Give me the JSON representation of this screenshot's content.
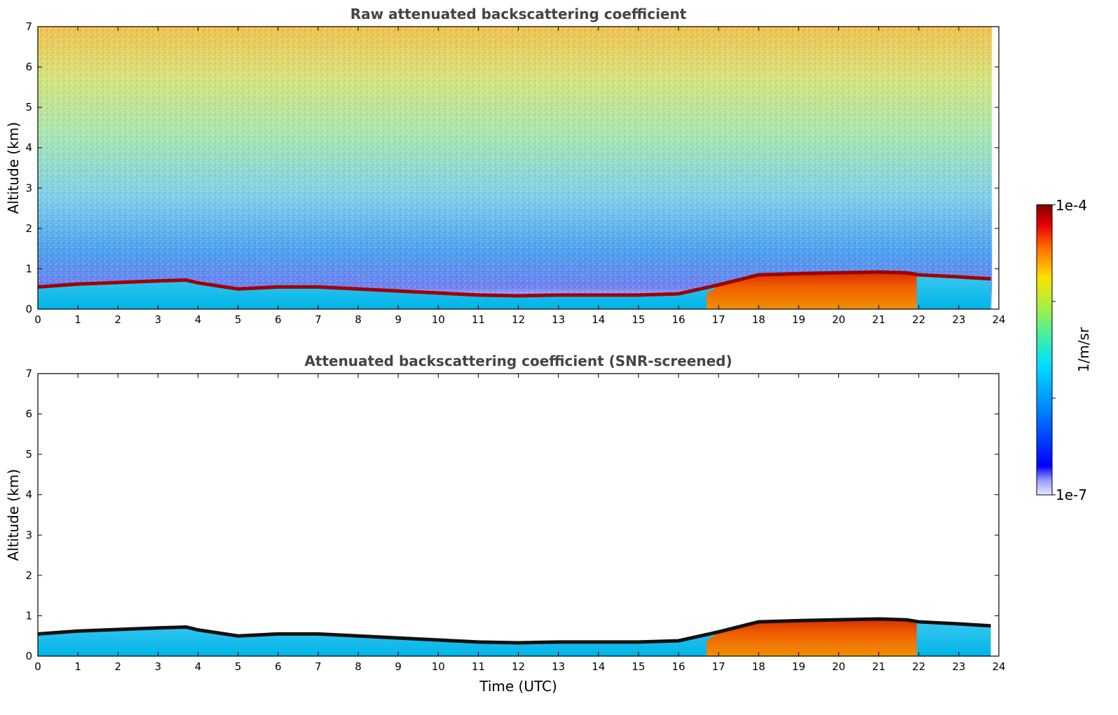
{
  "chart_data": [
    {
      "type": "heatmap",
      "title": "Raw attenuated backscattering coefficient",
      "xlabel": "",
      "ylabel": "Altitude (km)",
      "xlim": [
        0,
        24
      ],
      "ylim": [
        0,
        7
      ],
      "xticks": [
        0,
        1,
        2,
        3,
        4,
        5,
        6,
        7,
        8,
        9,
        10,
        11,
        12,
        13,
        14,
        15,
        16,
        17,
        18,
        19,
        20,
        21,
        22,
        23,
        24
      ],
      "yticks": [
        0,
        1,
        2,
        3,
        4,
        5,
        6,
        7
      ],
      "data_extent_x": [
        0,
        23.83
      ],
      "grid": false,
      "layer_top_km": {
        "x": [
          0,
          1,
          2,
          3,
          3.7,
          4,
          5,
          6,
          7,
          8,
          9,
          10,
          11,
          12,
          13,
          14,
          15,
          16,
          17,
          18,
          19,
          20,
          21,
          21.7,
          22,
          23,
          23.8
        ],
        "y": [
          0.55,
          0.62,
          0.66,
          0.7,
          0.72,
          0.65,
          0.5,
          0.55,
          0.55,
          0.5,
          0.45,
          0.4,
          0.35,
          0.33,
          0.35,
          0.35,
          0.35,
          0.38,
          0.6,
          0.85,
          0.88,
          0.9,
          0.92,
          0.9,
          0.85,
          0.8,
          0.75
        ]
      }
    },
    {
      "type": "heatmap",
      "title": "Attenuated backscattering coefficient (SNR-screened)",
      "xlabel": "Time (UTC)",
      "ylabel": "Altitude (km)",
      "xlim": [
        0,
        24
      ],
      "ylim": [
        0,
        7
      ],
      "xticks": [
        0,
        1,
        2,
        3,
        4,
        5,
        6,
        7,
        8,
        9,
        10,
        11,
        12,
        13,
        14,
        15,
        16,
        17,
        18,
        19,
        20,
        21,
        22,
        23,
        24
      ],
      "yticks": [
        0,
        1,
        2,
        3,
        4,
        5,
        6,
        7
      ],
      "data_extent_x": [
        0,
        23.83
      ],
      "grid": false
    }
  ],
  "colorbar": {
    "label": "1/m/sr",
    "max_label": "1e-4",
    "min_label": "1e-7",
    "scale": "log",
    "range": [
      1e-07,
      0.0001
    ],
    "colormap": "jet"
  }
}
